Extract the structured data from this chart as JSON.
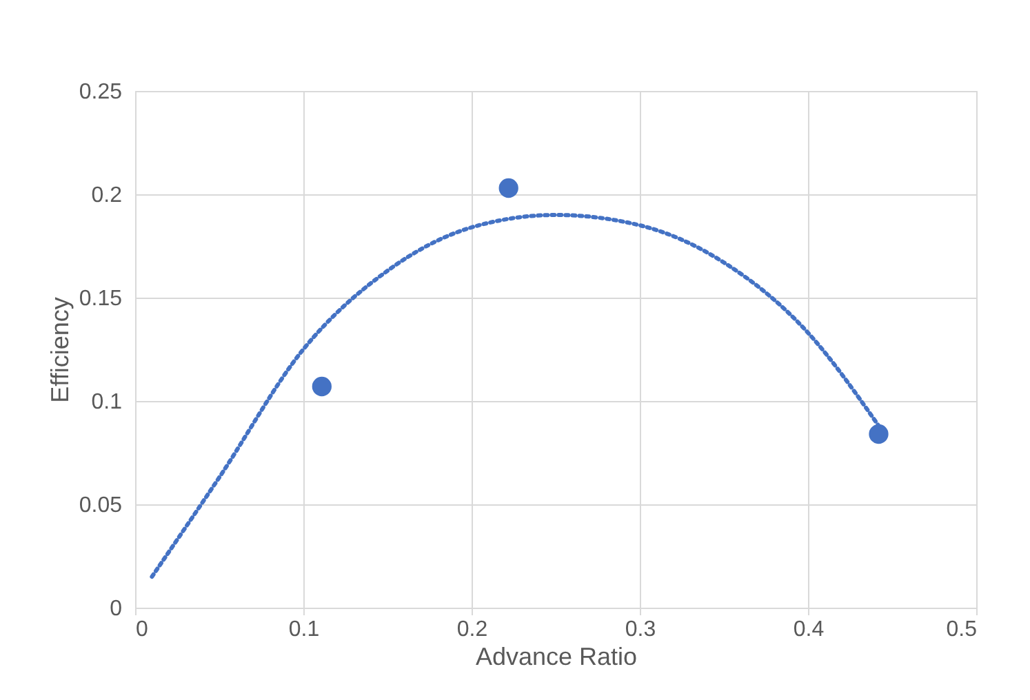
{
  "chart_data": {
    "type": "scatter",
    "xlabel": "Advance Ratio",
    "ylabel": "Efficiency",
    "xlim": [
      0,
      0.5
    ],
    "xticks": [
      0,
      0.1,
      0.2,
      0.3,
      0.4,
      0.5
    ],
    "ylim": [
      0,
      0.25
    ],
    "yticks": [
      0,
      0.05,
      0.1,
      0.15,
      0.2,
      0.25
    ],
    "grid": true,
    "legend": false,
    "series": [
      {
        "marker": "circle",
        "color": "#4472c4",
        "x": [
          0.111,
          0.222,
          0.442
        ],
        "values": [
          0.107,
          0.203,
          0.084
        ]
      },
      {
        "type": "line",
        "line_style": "dotted",
        "marker": "none",
        "color": "#4472c4",
        "x": [
          0.01,
          0.05,
          0.1,
          0.15,
          0.2,
          0.25,
          0.3,
          0.35,
          0.4,
          0.442
        ],
        "values": [
          0.015,
          0.063,
          0.125,
          0.163,
          0.184,
          0.19,
          0.185,
          0.167,
          0.133,
          0.088
        ]
      }
    ]
  }
}
